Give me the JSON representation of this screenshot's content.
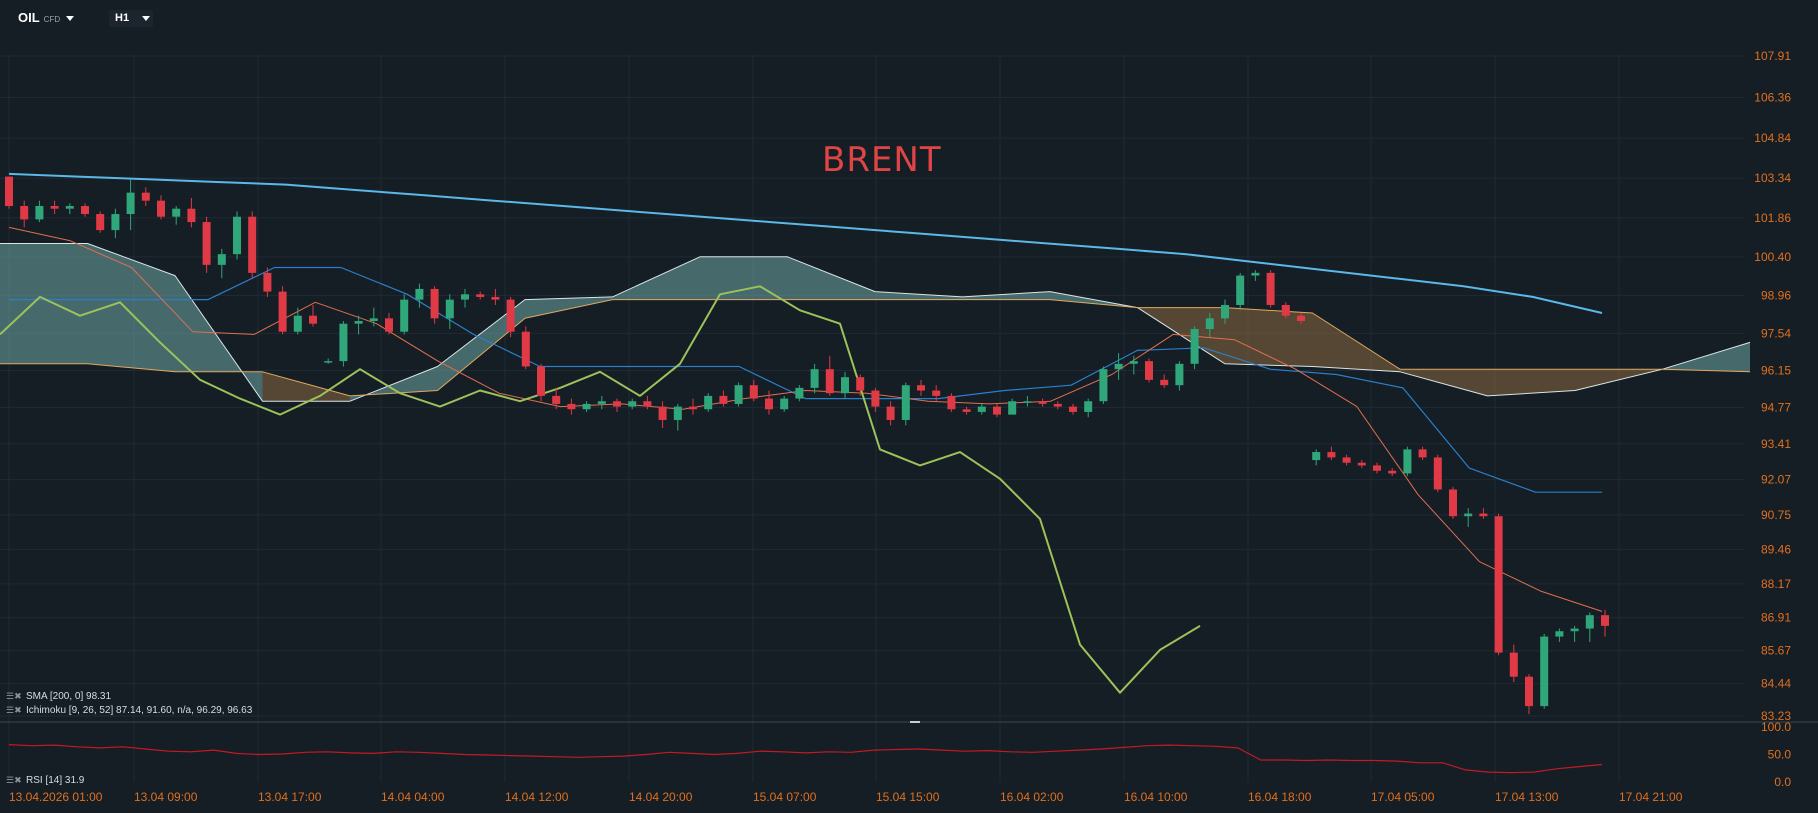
{
  "header": {
    "symbol": "OIL",
    "symbol_type": "CFD",
    "timeframe": "H1"
  },
  "overlay_title": "BRENT",
  "indicators": {
    "sma": "SMA [200, 0] 98.31",
    "ichimoku": "Ichimoku [9, 26, 52] 87.14, 91.60, n/a, 96.29, 96.63",
    "rsi": "RSI [14] 31.9"
  },
  "colors": {
    "background": "#151d25",
    "grid": "#202a34",
    "candle_up": "#2fa77a",
    "candle_down": "#e03a46",
    "axis_text": "#e0701e",
    "sma": "#5bb8e8",
    "ichimoku_conversion": "#e07050",
    "ichimoku_base": "#2a7fc8",
    "ichimoku_lagging": "#9cc25a",
    "cloud_bear": "#8a6a3f",
    "cloud_bull": "#6fa8a8",
    "rsi_line": "#c41a22"
  },
  "chart_data": {
    "type": "candlestick",
    "title": "BRENT",
    "ylim": [
      83.23,
      108.9
    ],
    "y_ticks": [
      "107.91",
      "106.36",
      "104.84",
      "103.34",
      "101.86",
      "100.40",
      "98.96",
      "97.54",
      "96.15",
      "94.77",
      "93.41",
      "92.07",
      "90.75",
      "89.46",
      "88.17",
      "86.91",
      "85.67",
      "84.44",
      "83.23"
    ],
    "x_ticks": [
      "13.04.2026 01:00",
      "13.04 09:00",
      "13.04 17:00",
      "14.04 04:00",
      "14.04 12:00",
      "14.04 20:00",
      "15.04 07:00",
      "15.04 15:00",
      "16.04 02:00",
      "16.04 10:00",
      "16.04 18:00",
      "17.04 05:00",
      "17.04 13:00",
      "17.04 21:00"
    ],
    "candles_ohlc": [
      [
        103.4,
        103.4,
        102.2,
        102.3
      ],
      [
        102.3,
        102.5,
        101.5,
        101.8
      ],
      [
        101.8,
        102.5,
        101.7,
        102.3
      ],
      [
        102.3,
        102.5,
        102.0,
        102.2
      ],
      [
        102.2,
        102.4,
        102.0,
        102.3
      ],
      [
        102.3,
        102.4,
        101.9,
        102.0
      ],
      [
        102.0,
        102.1,
        101.3,
        101.4
      ],
      [
        101.4,
        102.2,
        101.1,
        102.0
      ],
      [
        102.0,
        103.3,
        101.4,
        102.8
      ],
      [
        102.8,
        103.0,
        102.3,
        102.5
      ],
      [
        102.5,
        102.7,
        101.8,
        101.9
      ],
      [
        101.9,
        102.3,
        101.6,
        102.2
      ],
      [
        102.2,
        102.6,
        101.5,
        101.7
      ],
      [
        101.7,
        101.9,
        99.8,
        100.1
      ],
      [
        100.1,
        100.7,
        99.6,
        100.5
      ],
      [
        100.5,
        102.1,
        100.3,
        101.9
      ],
      [
        101.9,
        102.1,
        99.6,
        99.8
      ],
      [
        99.8,
        100.0,
        98.9,
        99.1
      ],
      [
        99.1,
        99.3,
        97.5,
        97.6
      ],
      [
        97.6,
        98.5,
        97.5,
        98.2
      ],
      [
        98.2,
        98.6,
        97.8,
        97.9
      ],
      [
        96.5,
        96.6,
        96.4,
        96.5
      ],
      [
        96.5,
        98.0,
        96.3,
        97.9
      ],
      [
        97.9,
        98.2,
        97.5,
        98.0
      ],
      [
        98.0,
        98.5,
        97.8,
        98.1
      ],
      [
        98.1,
        98.3,
        97.5,
        97.6
      ],
      [
        97.6,
        99.0,
        97.5,
        98.8
      ],
      [
        98.8,
        99.4,
        98.5,
        99.2
      ],
      [
        99.2,
        99.3,
        97.9,
        98.1
      ],
      [
        98.1,
        99.0,
        97.7,
        98.8
      ],
      [
        98.8,
        99.2,
        98.5,
        99.0
      ],
      [
        99.0,
        99.1,
        98.8,
        98.9
      ],
      [
        98.9,
        99.2,
        98.6,
        98.8
      ],
      [
        98.8,
        98.9,
        97.4,
        97.6
      ],
      [
        97.6,
        97.8,
        96.2,
        96.3
      ],
      [
        96.3,
        96.4,
        95.0,
        95.2
      ],
      [
        95.2,
        95.5,
        94.7,
        94.9
      ],
      [
        94.9,
        95.1,
        94.5,
        94.7
      ],
      [
        94.7,
        95.0,
        94.6,
        94.9
      ],
      [
        94.9,
        95.2,
        94.7,
        95.0
      ],
      [
        95.0,
        95.1,
        94.6,
        94.8
      ],
      [
        94.8,
        95.1,
        94.7,
        95.0
      ],
      [
        95.0,
        95.2,
        94.7,
        94.8
      ],
      [
        94.8,
        95.0,
        94.0,
        94.3
      ],
      [
        94.3,
        94.9,
        93.9,
        94.8
      ],
      [
        94.8,
        95.1,
        94.5,
        94.7
      ],
      [
        94.7,
        95.3,
        94.6,
        95.2
      ],
      [
        95.2,
        95.4,
        94.8,
        94.9
      ],
      [
        94.9,
        95.7,
        94.8,
        95.6
      ],
      [
        95.6,
        95.8,
        95.0,
        95.1
      ],
      [
        95.1,
        95.4,
        94.5,
        94.7
      ],
      [
        94.7,
        95.2,
        94.6,
        95.1
      ],
      [
        95.1,
        95.6,
        95.0,
        95.5
      ],
      [
        95.5,
        96.4,
        95.3,
        96.2
      ],
      [
        96.2,
        96.7,
        95.2,
        95.3
      ],
      [
        95.3,
        96.1,
        95.1,
        95.9
      ],
      [
        95.9,
        96.0,
        95.2,
        95.4
      ],
      [
        95.4,
        95.5,
        94.6,
        94.8
      ],
      [
        94.8,
        95.0,
        94.1,
        94.3
      ],
      [
        94.3,
        95.7,
        94.1,
        95.6
      ],
      [
        95.6,
        95.8,
        95.2,
        95.4
      ],
      [
        95.4,
        95.6,
        95.0,
        95.2
      ],
      [
        95.2,
        95.3,
        94.6,
        94.7
      ],
      [
        94.7,
        94.8,
        94.5,
        94.6
      ],
      [
        94.6,
        94.9,
        94.5,
        94.8
      ],
      [
        94.8,
        94.9,
        94.4,
        94.5
      ],
      [
        94.5,
        95.1,
        94.5,
        95.0
      ],
      [
        95.0,
        95.2,
        94.8,
        95.0
      ],
      [
        95.0,
        95.1,
        94.8,
        94.9
      ],
      [
        94.9,
        95.0,
        94.7,
        94.8
      ],
      [
        94.8,
        94.9,
        94.5,
        94.6
      ],
      [
        94.6,
        95.1,
        94.4,
        95.0
      ],
      [
        95.0,
        96.3,
        94.9,
        96.2
      ],
      [
        96.2,
        96.8,
        95.8,
        96.4
      ],
      [
        96.4,
        96.7,
        96.0,
        96.5
      ],
      [
        96.5,
        96.6,
        95.7,
        95.8
      ],
      [
        95.8,
        96.0,
        95.5,
        95.6
      ],
      [
        95.6,
        96.5,
        95.4,
        96.4
      ],
      [
        96.4,
        97.8,
        96.2,
        97.7
      ],
      [
        97.7,
        98.3,
        97.4,
        98.1
      ],
      [
        98.1,
        98.8,
        97.9,
        98.6
      ],
      [
        98.6,
        99.8,
        98.4,
        99.7
      ],
      [
        99.7,
        99.9,
        99.5,
        99.8
      ],
      [
        99.8,
        99.9,
        98.5,
        98.6
      ],
      [
        98.6,
        98.7,
        98.1,
        98.2
      ],
      [
        98.2,
        98.3,
        97.9,
        98.0
      ],
      [
        92.8,
        93.2,
        92.6,
        93.1
      ],
      [
        93.1,
        93.3,
        92.8,
        92.9
      ],
      [
        92.9,
        93.0,
        92.6,
        92.7
      ],
      [
        92.7,
        92.8,
        92.5,
        92.6
      ],
      [
        92.6,
        92.7,
        92.3,
        92.4
      ],
      [
        92.4,
        92.5,
        92.2,
        92.3
      ],
      [
        92.3,
        93.3,
        92.2,
        93.2
      ],
      [
        93.2,
        93.3,
        92.8,
        92.9
      ],
      [
        92.9,
        93.0,
        91.6,
        91.7
      ],
      [
        91.7,
        91.8,
        90.6,
        90.7
      ],
      [
        90.7,
        91.0,
        90.3,
        90.8
      ],
      [
        90.8,
        91.0,
        90.6,
        90.7
      ],
      [
        90.7,
        90.8,
        85.5,
        85.6
      ],
      [
        85.6,
        85.9,
        84.5,
        84.7
      ],
      [
        84.7,
        84.8,
        83.3,
        83.6
      ],
      [
        83.6,
        86.3,
        83.5,
        86.2
      ],
      [
        86.2,
        86.5,
        86.0,
        86.4
      ],
      [
        86.4,
        86.6,
        86.0,
        86.5
      ],
      [
        86.5,
        87.1,
        86.0,
        87.0
      ],
      [
        87.0,
        87.2,
        86.2,
        86.6
      ]
    ],
    "sma200_line": [
      103.5,
      103.4,
      103.3,
      103.2,
      103.1,
      102.9,
      102.7,
      102.5,
      102.3,
      102.1,
      101.9,
      101.7,
      101.5,
      101.3,
      101.1,
      100.9,
      100.7,
      100.5,
      100.2,
      99.9,
      99.6,
      99.3,
      98.9,
      98.3
    ],
    "ichimoku": {
      "conversion": [
        101.5,
        101.0,
        100.0,
        97.6,
        97.5,
        98.7,
        97.9,
        96.5,
        95.3,
        94.8,
        94.9,
        94.7,
        95.1,
        95.4,
        95.3,
        95.0,
        94.9,
        95.0,
        96.0,
        97.5,
        97.3,
        96.2,
        94.8,
        91.5,
        89.0,
        87.9,
        87.14
      ],
      "base": [
        98.8,
        98.8,
        98.8,
        98.8,
        100.0,
        100.0,
        99.0,
        97.5,
        96.3,
        96.3,
        96.3,
        96.3,
        95.1,
        95.1,
        95.1,
        95.4,
        95.6,
        96.9,
        97.0,
        96.2,
        96.0,
        95.5,
        92.5,
        91.6,
        91.6
      ],
      "lagging": [
        97.5,
        98.9,
        98.2,
        98.7,
        97.2,
        95.8,
        95.1,
        94.5,
        95.2,
        96.2,
        95.3,
        94.8,
        95.4,
        95.0,
        95.5,
        96.1,
        95.2,
        96.4,
        99.0,
        99.3,
        98.4,
        97.9,
        93.2,
        92.6,
        93.1,
        92.1,
        90.6,
        85.9,
        84.1,
        85.7,
        86.6
      ],
      "cloud_span_a": [
        100.9,
        100.9,
        99.7,
        95.0,
        95.0,
        96.3,
        98.8,
        98.9,
        100.4,
        100.4,
        99.1,
        98.9,
        99.1,
        98.5,
        96.4,
        96.3,
        96.1,
        95.2,
        95.4,
        96.2,
        97.2
      ],
      "cloud_span_b": [
        96.4,
        96.4,
        96.1,
        96.1,
        95.2,
        95.4,
        98.1,
        98.8,
        98.8,
        98.8,
        98.8,
        98.8,
        98.8,
        98.5,
        98.5,
        98.3,
        96.2,
        96.2,
        96.2,
        96.2,
        96.1
      ]
    },
    "rsi": {
      "ylim": [
        0,
        100
      ],
      "y_ticks": [
        "100.0",
        "50.0",
        "0.0"
      ],
      "values": [
        68,
        66,
        67,
        64,
        62,
        64,
        60,
        56,
        55,
        58,
        52,
        50,
        51,
        54,
        55,
        53,
        52,
        55,
        54,
        52,
        50,
        49,
        48,
        47,
        46,
        45,
        46,
        47,
        50,
        54,
        52,
        50,
        52,
        56,
        55,
        53,
        55,
        54,
        58,
        59,
        60,
        58,
        56,
        57,
        55,
        54,
        56,
        58,
        60,
        63,
        66,
        67,
        66,
        65,
        62,
        40,
        40,
        39,
        40,
        39,
        39,
        38,
        35,
        35,
        22,
        18,
        17,
        18,
        24,
        28,
        31.9
      ]
    }
  }
}
